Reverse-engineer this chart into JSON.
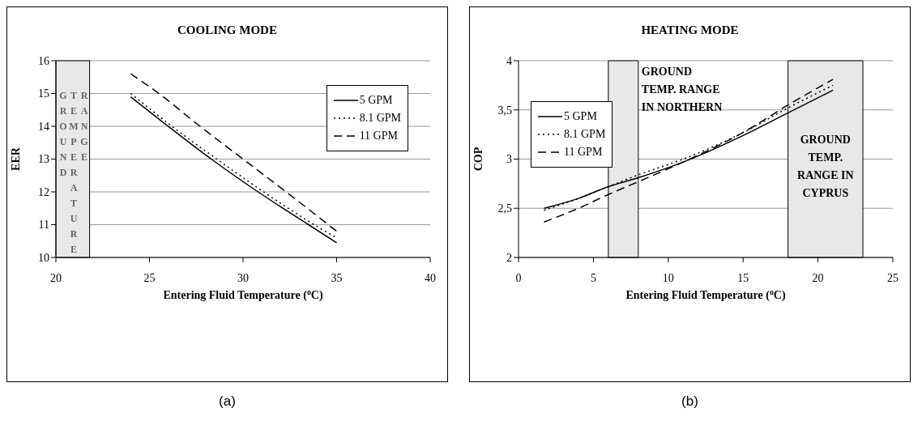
{
  "chart_data": [
    {
      "type": "line",
      "title": "COOLING MODE",
      "xlabel": "Entering Fluid Temperature ($^{o}$C)",
      "ylabel": "EER",
      "annotations": [
        "(a)"
      ],
      "xlim": [
        20,
        40
      ],
      "xticks": [
        20,
        25,
        30,
        35,
        40
      ],
      "ylim": [
        10,
        16
      ],
      "yticks": [
        10,
        11,
        12,
        13,
        14,
        15,
        16
      ],
      "grid": "y",
      "legend": "top right",
      "bands": [
        {
          "axis": "x",
          "from": 20,
          "to": 21.8,
          "label": "GROUND TEMPERATURE RANGE",
          "color": "#e8e8e8"
        }
      ],
      "series": [
        {
          "name": "5 GPM",
          "color": "#000000",
          "line_style": "solid",
          "x": [
            24,
            26,
            28.3,
            30.8,
            33.5,
            35
          ],
          "values": [
            14.9,
            14.0,
            13.0,
            12.0,
            11.0,
            10.45
          ]
        },
        {
          "name": "8.1 GPM",
          "color": "#000000",
          "line_style": "dotted",
          "x": [
            24,
            26.2,
            28.6,
            31.1,
            33.8,
            35
          ],
          "values": [
            15.0,
            14.0,
            13.0,
            12.0,
            11.0,
            10.6
          ]
        },
        {
          "name": "11 GPM",
          "color": "#000000",
          "line_style": "dashed",
          "x": [
            24,
            25.5,
            27.7,
            30.0,
            32.3,
            35
          ],
          "values": [
            15.6,
            15.0,
            14.0,
            13.0,
            12.0,
            10.8
          ]
        }
      ]
    },
    {
      "type": "line",
      "title": "HEATING MODE",
      "xlabel": "Entering Fluid Temperature ($^{o}$C)",
      "ylabel": "COP",
      "annotations": [
        "(b)"
      ],
      "xlim": [
        0,
        25
      ],
      "xticks": [
        0,
        5,
        10,
        15,
        20,
        25
      ],
      "ylim": [
        2,
        4
      ],
      "yticks": [
        2,
        {
          "value": 2.5,
          "label": "2,5"
        },
        3,
        {
          "value": 3.5,
          "label": "3,5"
        },
        4
      ],
      "grid": "y",
      "legend": "top left",
      "bands": [
        {
          "axis": "x",
          "from": 6,
          "to": 8,
          "label": "GROUND TEMP. RANGE IN NORTHERN",
          "color": "#e8e8e8"
        },
        {
          "axis": "x",
          "from": 18,
          "to": 23,
          "label": "GROUND TEMP. RANGE IN CYPRUS",
          "color": "#e8e8e8"
        }
      ],
      "series": [
        {
          "name": "5 GPM",
          "color": "#000000",
          "line_style": "solid",
          "x": [
            1.7,
            4,
            6,
            8,
            11,
            15,
            18,
            21
          ],
          "values": [
            2.5,
            2.6,
            2.72,
            2.81,
            2.97,
            3.24,
            3.47,
            3.7
          ]
        },
        {
          "name": "8.1 GPM",
          "color": "#000000",
          "line_style": "dotted",
          "x": [
            1.7,
            4,
            6,
            8,
            11,
            15,
            18,
            21
          ],
          "values": [
            2.48,
            2.6,
            2.72,
            2.84,
            3.0,
            3.27,
            3.52,
            3.75
          ]
        },
        {
          "name": "11 GPM",
          "color": "#000000",
          "line_style": "dashed",
          "x": [
            1.7,
            4,
            6,
            8,
            11,
            15,
            18,
            21
          ],
          "values": [
            2.36,
            2.5,
            2.64,
            2.77,
            2.97,
            3.27,
            3.55,
            3.81
          ]
        }
      ]
    }
  ]
}
